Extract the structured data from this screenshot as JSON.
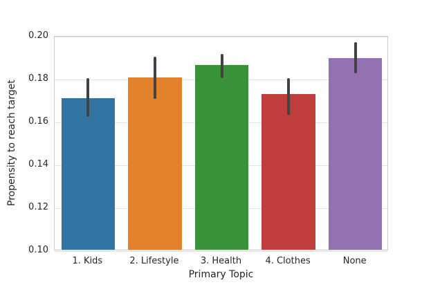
{
  "chart_data": {
    "type": "bar",
    "title": "",
    "xlabel": "Primary Topic",
    "ylabel": "Propensity to reach target",
    "categories": [
      "1. Kids",
      "2. Lifestyle",
      "3. Health",
      "4. Clothes",
      "None"
    ],
    "values": [
      0.1705,
      0.1803,
      0.186,
      0.1725,
      0.1895
    ],
    "error_bars": [
      [
        0.1625,
        0.1805
      ],
      [
        0.171,
        0.1905
      ],
      [
        0.1805,
        0.1918
      ],
      [
        0.1635,
        0.1807
      ],
      [
        0.183,
        0.1975
      ]
    ],
    "bar_colors": [
      "#3274a1",
      "#e1812c",
      "#3a923a",
      "#c03d3e",
      "#9372b2"
    ],
    "error_color": "#424242",
    "ylim": [
      0.1,
      0.2
    ],
    "yticks": [
      0.1,
      0.12,
      0.14,
      0.16,
      0.18,
      0.2
    ],
    "ytick_labels": [
      "0.10",
      "0.12",
      "0.14",
      "0.16",
      "0.18",
      "0.20"
    ],
    "bar_width_fraction": 0.8,
    "grid": true,
    "legend": "none",
    "style": "whitegrid"
  }
}
